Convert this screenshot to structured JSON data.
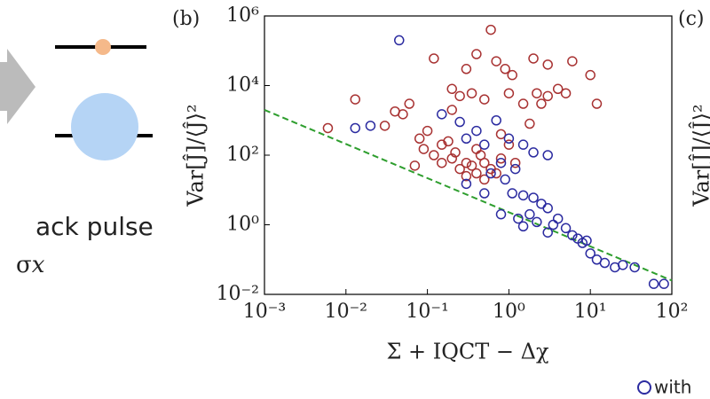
{
  "chart_data": {
    "type": "scatter",
    "panel_label": "(b)",
    "next_panel_label": "(c)",
    "x_label": "Σ + IQCT − Δχ",
    "y_label": "Var[Ĵ]/⟨Ĵ⟩²",
    "next_y_label": "Var[Ĵ]/⟨Ĵ⟩²",
    "left_text": "ack pulse",
    "left_symbol": "σ𝑥",
    "legend_text": "with",
    "xscale": "log",
    "yscale": "log",
    "xlim": [
      0.001,
      100
    ],
    "ylim": [
      0.01,
      1000000
    ],
    "xticks": [
      {
        "value": 0.001,
        "label": "10⁻³"
      },
      {
        "value": 0.01,
        "label": "10⁻²"
      },
      {
        "value": 0.1,
        "label": "10⁻¹"
      },
      {
        "value": 1,
        "label": "10⁰"
      },
      {
        "value": 10,
        "label": "10¹"
      },
      {
        "value": 100,
        "label": "10²"
      }
    ],
    "yticks": [
      {
        "value": 0.01,
        "label": "10⁻²"
      },
      {
        "value": 1,
        "label": "10⁰"
      },
      {
        "value": 100,
        "label": "10²"
      },
      {
        "value": 10000,
        "label": "10⁴"
      },
      {
        "value": 1000000,
        "label": "10⁶"
      }
    ],
    "bound_line": {
      "x": [
        0.001,
        100
      ],
      "values": [
        2000,
        0.025
      ],
      "color": "#2e9e2e"
    },
    "series": [
      {
        "color": "#a83232",
        "x": [
          0.6,
          0.12,
          0.3,
          0.4,
          0.7,
          1.1,
          2,
          3,
          6,
          10,
          0.9,
          0.2,
          0.25,
          0.35,
          0.5,
          1,
          1.5,
          2.2,
          3,
          4,
          5,
          12,
          0.013,
          0.006,
          0.03,
          0.05,
          0.04,
          0.08,
          0.1,
          0.12,
          0.15,
          0.2,
          0.25,
          0.3,
          0.35,
          0.4,
          0.45,
          0.5,
          0.6,
          0.7,
          0.8,
          1,
          1.2,
          0.06,
          0.07,
          0.09,
          0.18,
          0.22,
          0.5,
          0.3,
          2.5,
          1.8,
          0.15,
          0.4,
          0.8,
          0.2
        ],
        "values": [
          400000,
          60000,
          30000,
          80000,
          50000,
          20000,
          60000,
          40000,
          50000,
          20000,
          30000,
          8000,
          5000,
          6000,
          4000,
          6000,
          3000,
          6000,
          5000,
          8000,
          6000,
          3000,
          4000,
          600,
          700,
          1500,
          1800,
          300,
          500,
          100,
          60,
          80,
          40,
          60,
          50,
          30,
          100,
          60,
          40,
          30,
          80,
          200,
          60,
          3000,
          50,
          150,
          250,
          120,
          20,
          25,
          3000,
          800,
          200,
          150,
          400,
          2000
        ]
      },
      {
        "color": "#2b2ba0",
        "x": [
          0.045,
          0.013,
          0.02,
          0.15,
          0.25,
          0.3,
          0.4,
          0.5,
          0.7,
          1,
          1.5,
          2,
          3,
          0.8,
          0.6,
          1.2,
          0.9,
          1.1,
          1.5,
          2,
          2.5,
          3,
          1.8,
          1.3,
          2.2,
          3.5,
          4,
          5,
          6,
          7,
          8,
          9,
          10,
          12,
          15,
          20,
          25,
          35,
          60,
          80,
          0.8,
          1.5,
          3,
          0.3,
          0.5
        ],
        "values": [
          200000,
          600,
          700,
          1500,
          900,
          300,
          500,
          200,
          1000,
          300,
          200,
          120,
          100,
          60,
          30,
          40,
          20,
          8,
          7,
          6,
          4,
          3,
          2,
          1.5,
          1.2,
          1,
          1.5,
          0.8,
          0.5,
          0.4,
          0.3,
          0.35,
          0.15,
          0.1,
          0.08,
          0.06,
          0.07,
          0.06,
          0.02,
          0.02,
          2,
          0.9,
          0.6,
          15,
          8
        ]
      }
    ]
  }
}
